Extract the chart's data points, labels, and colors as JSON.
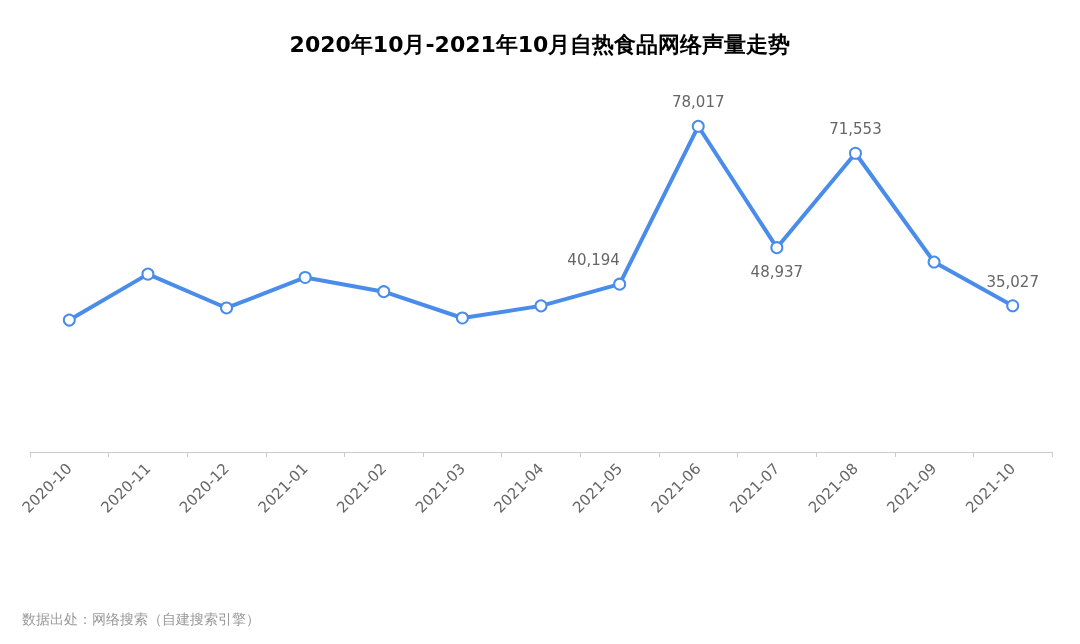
{
  "chart_data": {
    "type": "line",
    "title": "2020年10月-2021年10月自热食品网络声量走势",
    "categories": [
      "2020-10",
      "2020-11",
      "2020-12",
      "2021-01",
      "2021-02",
      "2021-03",
      "2021-04",
      "2021-05",
      "2021-06",
      "2021-07",
      "2021-08",
      "2021-09",
      "2021-10"
    ],
    "series": [
      {
        "color": "#4a8cea",
        "values": [
          31600,
          42600,
          34500,
          41800,
          38400,
          32100,
          35000,
          40194,
          78017,
          48937,
          71553,
          45500,
          35027
        ],
        "value_labels": [
          null,
          null,
          null,
          null,
          null,
          null,
          null,
          "40,194",
          "78,017",
          "48,937",
          "71,553",
          null,
          "35,027"
        ]
      }
    ],
    "marker": "circle",
    "grid": false,
    "annotations": [
      "数据出处：网络搜索（自建搜索引擎）"
    ]
  }
}
